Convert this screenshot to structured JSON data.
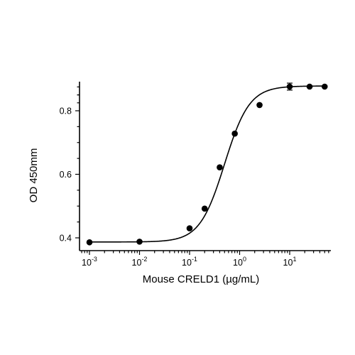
{
  "chart_data": {
    "type": "scatter",
    "xlabel": "Mouse CRELD1 (µg/mL)",
    "ylabel": "OD 450mm",
    "x_scale": "log10",
    "xlim": [
      0.0006,
      60
    ],
    "ylim": [
      0.37,
      0.89
    ],
    "x_ticks": [
      {
        "value": 0.001,
        "base": "10",
        "exp": "-3"
      },
      {
        "value": 0.01,
        "base": "10",
        "exp": "-2"
      },
      {
        "value": 0.1,
        "base": "10",
        "exp": "-1"
      },
      {
        "value": 1,
        "base": "10",
        "exp": "0"
      },
      {
        "value": 10,
        "base": "10",
        "exp": "1"
      }
    ],
    "y_ticks": [
      {
        "value": 0.4,
        "label": "0.4"
      },
      {
        "value": 0.6,
        "label": "0.6"
      },
      {
        "value": 0.8,
        "label": "0.8"
      }
    ],
    "points": [
      {
        "x": 0.001,
        "y": 0.386
      },
      {
        "x": 0.01,
        "y": 0.388
      },
      {
        "x": 0.1,
        "y": 0.43
      },
      {
        "x": 0.2,
        "y": 0.492
      },
      {
        "x": 0.4,
        "y": 0.622
      },
      {
        "x": 0.8,
        "y": 0.728
      },
      {
        "x": 2.5,
        "y": 0.818
      },
      {
        "x": 10,
        "y": 0.876,
        "err": 0.011
      },
      {
        "x": 25,
        "y": 0.876
      },
      {
        "x": 50,
        "y": 0.876
      }
    ],
    "fit": {
      "model": "4PL",
      "bottom": 0.387,
      "top": 0.878,
      "ec50": 0.5,
      "hill": 1.75
    },
    "grid": false,
    "legend": "none",
    "colors": {
      "marker": "#000000",
      "line": "#000000",
      "axis": "#000000"
    }
  }
}
